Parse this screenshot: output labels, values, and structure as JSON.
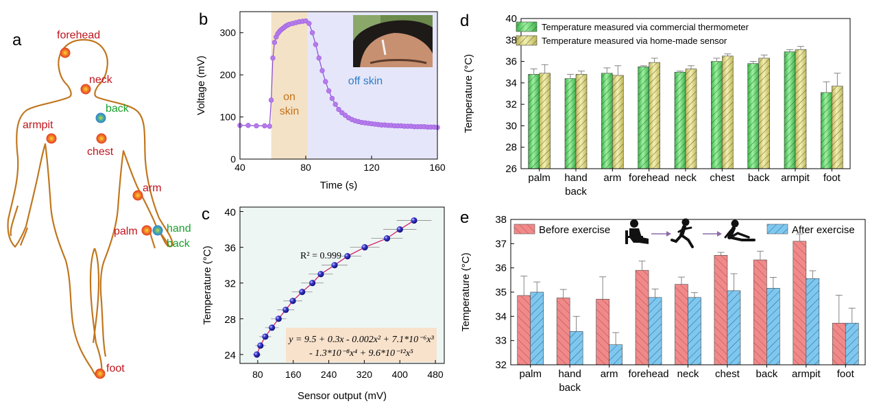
{
  "panel_labels": {
    "a": "a",
    "b": "b",
    "c": "c",
    "d": "d",
    "e": "e"
  },
  "body_map": {
    "points": [
      {
        "name": "forehead",
        "label": "forehead",
        "color": "#c0141c"
      },
      {
        "name": "neck",
        "label": "neck",
        "color": "#c0141c"
      },
      {
        "name": "back",
        "label": "back",
        "color": "#16a02a"
      },
      {
        "name": "armpit",
        "label": "armpit",
        "color": "#c0141c"
      },
      {
        "name": "chest",
        "label": "chest",
        "color": "#c0141c"
      },
      {
        "name": "arm",
        "label": "arm",
        "color": "#c0141c"
      },
      {
        "name": "palm",
        "label": "palm",
        "color": "#c0141c"
      },
      {
        "name": "hand",
        "label": "hand",
        "color": "#16a02a"
      },
      {
        "name": "hand-back",
        "label": "back",
        "color": "#16a02a"
      },
      {
        "name": "foot",
        "label": "foot",
        "color": "#c0141c"
      }
    ]
  },
  "chart_data": [
    {
      "id": "b",
      "type": "scatter",
      "xlabel": "Time (s)",
      "ylabel": "Voltage (mV)",
      "xlim": [
        40,
        160
      ],
      "ylim": [
        0,
        350
      ],
      "xticks": [
        40,
        80,
        120,
        160
      ],
      "yticks": [
        0,
        100,
        200,
        300
      ],
      "regions": [
        {
          "label_lines": [
            "on",
            "skin"
          ],
          "x": [
            59,
            81
          ],
          "color": "#f4e2c6"
        },
        {
          "label_lines": [
            "off skin"
          ],
          "x": [
            81,
            160
          ],
          "color": "#e6e6fa"
        }
      ],
      "series": [
        {
          "color": "#b57bea",
          "x": [
            40,
            45,
            50,
            55,
            58,
            59,
            60,
            61,
            62,
            63,
            64,
            65,
            66,
            67,
            68,
            69,
            70,
            72,
            74,
            76,
            78,
            80,
            82,
            84,
            86,
            88,
            90,
            92,
            94,
            96,
            98,
            100,
            102,
            104,
            106,
            108,
            110,
            112,
            114,
            116,
            118,
            120,
            122,
            124,
            126,
            128,
            130,
            132,
            134,
            136,
            138,
            140,
            142,
            144,
            146,
            148,
            150,
            152,
            154,
            156,
            158,
            160
          ],
          "y": [
            80,
            80,
            79,
            79,
            78,
            140,
            240,
            277,
            290,
            298,
            303,
            307,
            310,
            313,
            316,
            318,
            320,
            322,
            324,
            326,
            327,
            328,
            322,
            300,
            272,
            240,
            210,
            184,
            162,
            144,
            130,
            118,
            110,
            104,
            98,
            94,
            91,
            89,
            87,
            86,
            85,
            84,
            83,
            82,
            81,
            81,
            80,
            80,
            79,
            79,
            79,
            78,
            78,
            78,
            77,
            77,
            77,
            77,
            76,
            76,
            76,
            75
          ]
        }
      ]
    },
    {
      "id": "c",
      "type": "scatter",
      "xlabel": "Sensor output (mV)",
      "ylabel": "Temperature (°C)",
      "xlim": [
        40,
        500
      ],
      "ylim": [
        23,
        40.5
      ],
      "xticks": [
        80,
        160,
        240,
        320,
        400,
        480
      ],
      "yticks": [
        24,
        28,
        32,
        36,
        40
      ],
      "annotation": "R² = 0.999",
      "equation_lines": [
        "y = 9.5 + 0.3x - 0.002x² + 7.1*10⁻⁶x³",
        "- 1.3*10⁻⁸x⁴ + 9.6*10⁻¹²x⁵"
      ],
      "series": [
        {
          "color": "#1a1aa8",
          "x": [
            78,
            86,
            97,
            112,
            127,
            143,
            159,
            180,
            203,
            222,
            253,
            282,
            321,
            371,
            400,
            432
          ],
          "y": [
            24,
            25,
            26,
            27,
            28,
            29,
            30,
            31,
            32,
            33,
            34,
            35,
            36,
            37,
            38,
            39
          ]
        }
      ]
    },
    {
      "id": "d",
      "type": "bar",
      "ylabel": "Temperature (°C)",
      "ylim": [
        26,
        40
      ],
      "yticks": [
        26,
        28,
        30,
        32,
        34,
        36,
        38,
        40
      ],
      "categories": [
        "palm",
        "hand\nback",
        "arm",
        "forehead",
        "neck",
        "chest",
        "back",
        "armpit",
        "foot"
      ],
      "legend_position": "top-left",
      "series": [
        {
          "name": "Temperature measured via commercial thermometer",
          "color": "#6fdc74",
          "values": [
            34.8,
            34.4,
            34.9,
            35.5,
            35.0,
            36.0,
            35.8,
            36.9,
            33.1
          ],
          "errors": [
            0.5,
            0.4,
            0.5,
            0.1,
            0.1,
            0.3,
            0.2,
            0.2,
            1.0
          ]
        },
        {
          "name": "Temperature measured via home-made sensor",
          "color": "#e6e289",
          "values": [
            34.9,
            34.8,
            34.7,
            35.9,
            35.3,
            36.5,
            36.3,
            37.1,
            33.7
          ],
          "errors": [
            0.8,
            0.3,
            0.9,
            0.4,
            0.3,
            0.2,
            0.3,
            0.3,
            1.2
          ]
        }
      ]
    },
    {
      "id": "e",
      "type": "bar",
      "ylabel": "Temperature (°C)",
      "ylim": [
        32,
        38
      ],
      "yticks": [
        32,
        33,
        34,
        35,
        36,
        37,
        38
      ],
      "categories": [
        "palm",
        "hand\nback",
        "arm",
        "forehead",
        "neck",
        "chest",
        "back",
        "armpit",
        "foot"
      ],
      "series": [
        {
          "name": "Before exercise",
          "color": "#f08a8a",
          "values": [
            34.86,
            34.76,
            34.71,
            35.9,
            35.32,
            36.52,
            36.33,
            37.1,
            33.72
          ],
          "errors": [
            0.8,
            0.35,
            0.92,
            0.38,
            0.3,
            0.12,
            0.36,
            0.3,
            1.15
          ]
        },
        {
          "name": "After exercise",
          "color": "#7ec8f0",
          "values": [
            35.0,
            33.38,
            32.83,
            34.78,
            34.78,
            35.06,
            35.16,
            35.56,
            33.72
          ],
          "errors": [
            0.42,
            0.62,
            0.5,
            0.35,
            0.2,
            0.7,
            0.45,
            0.32,
            0.62
          ]
        }
      ]
    }
  ]
}
